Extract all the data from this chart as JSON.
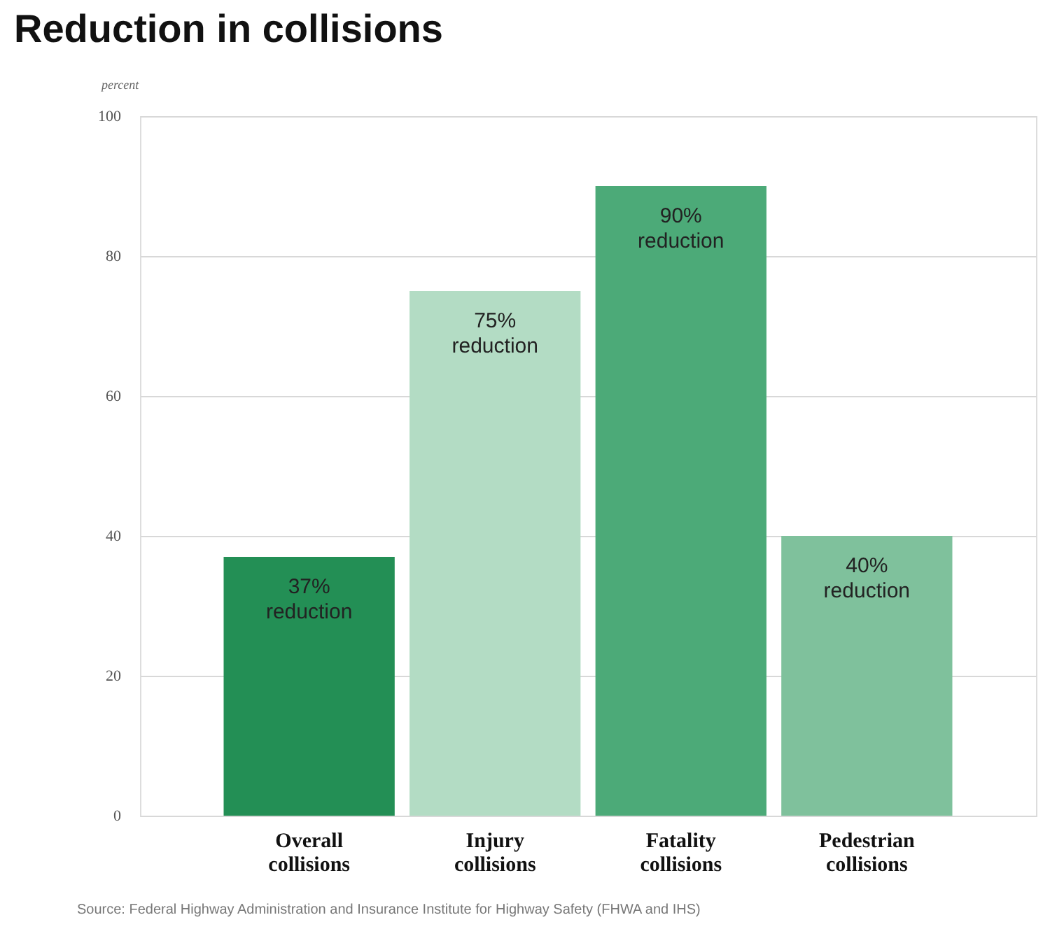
{
  "chart_data": {
    "type": "bar",
    "title": "Reduction in  collisions",
    "ylabel": "percent",
    "categories": [
      "Overall collisions",
      "Injury collisions",
      "Fatality collisions",
      "Pedestrian collisions"
    ],
    "values": [
      37,
      75,
      90,
      40
    ],
    "colors": [
      "#238f55",
      "#b3dcc4",
      "#4caa78",
      "#7fc19c"
    ],
    "value_labels": [
      "37% reduction",
      "75% reduction",
      "90% reduction",
      "40% reduction"
    ],
    "ylim": [
      0,
      100
    ],
    "yticks": [
      0,
      20,
      40,
      60,
      80,
      100
    ],
    "grid": "y",
    "annotations": [
      "Source: Federal Highway Administration and Insurance Institute for Highway Safety (FHWA and IHS)"
    ]
  }
}
